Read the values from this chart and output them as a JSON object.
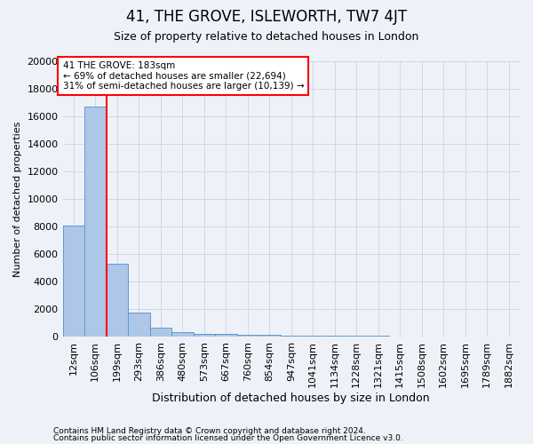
{
  "title": "41, THE GROVE, ISLEWORTH, TW7 4JT",
  "subtitle": "Size of property relative to detached houses in London",
  "xlabel": "Distribution of detached houses by size in London",
  "ylabel": "Number of detached properties",
  "footnote1": "Contains HM Land Registry data © Crown copyright and database right 2024.",
  "footnote2": "Contains public sector information licensed under the Open Government Licence v3.0.",
  "bin_labels": [
    "12sqm",
    "106sqm",
    "199sqm",
    "293sqm",
    "386sqm",
    "480sqm",
    "573sqm",
    "667sqm",
    "760sqm",
    "854sqm",
    "947sqm",
    "1041sqm",
    "1134sqm",
    "1228sqm",
    "1321sqm",
    "1415sqm",
    "1508sqm",
    "1602sqm",
    "1695sqm",
    "1789sqm",
    "1882sqm"
  ],
  "bar_values": [
    8100,
    16700,
    5300,
    1750,
    700,
    350,
    250,
    200,
    175,
    150,
    120,
    100,
    90,
    80,
    70,
    60,
    50,
    45,
    40,
    35,
    30
  ],
  "bar_color": "#aec6e8",
  "bar_edge_color": "#5b9bd5",
  "red_line_x": 1.5,
  "annotation_text": "41 THE GROVE: 183sqm\n← 69% of detached houses are smaller (22,694)\n31% of semi-detached houses are larger (10,139) →",
  "annotation_box_color": "white",
  "annotation_box_edge_color": "red",
  "red_line_color": "red",
  "ylim": [
    0,
    20000
  ],
  "yticks": [
    0,
    2000,
    4000,
    6000,
    8000,
    10000,
    12000,
    14000,
    16000,
    18000,
    20000
  ],
  "grid_color": "#c8d4e8",
  "background_color": "#eef2f8",
  "title_fontsize": 12,
  "subtitle_fontsize": 9,
  "footnote_fontsize": 6.5
}
